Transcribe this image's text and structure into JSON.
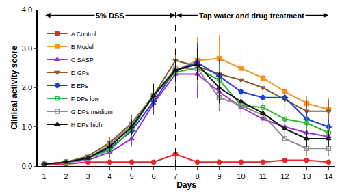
{
  "chart_data": {
    "type": "line",
    "x_label": "Days",
    "y_label": "Clinical activity score",
    "x": [
      1,
      2,
      3,
      4,
      5,
      6,
      7,
      8,
      9,
      10,
      11,
      12,
      13,
      14
    ],
    "xlim": [
      0.7,
      14.3
    ],
    "xticks": [
      1,
      2,
      3,
      4,
      5,
      6,
      7,
      8,
      9,
      10,
      11,
      12,
      13,
      14
    ],
    "ylim": [
      0,
      4
    ],
    "yticks": [
      {
        "value": 0,
        "label": "0.0"
      },
      {
        "value": 1,
        "label": "1.0"
      },
      {
        "value": 2,
        "label": "2.0"
      },
      {
        "value": 3,
        "label": "3.0"
      },
      {
        "value": 4,
        "label": "4.0"
      }
    ],
    "grid": false,
    "legend": "upper left",
    "divider_x": 7,
    "phases": [
      {
        "text": "5% DSS",
        "x_from": 1,
        "x_to": 7,
        "y": 3.85
      },
      {
        "text": "Tap water and drug treatment",
        "x_from": 7,
        "x_to": 14,
        "y": 3.85
      }
    ],
    "series": [
      {
        "name": "A Control",
        "color": "#e8262a",
        "marker": "circle",
        "values": [
          0.05,
          0.05,
          0.1,
          0.1,
          0.1,
          0.1,
          0.3,
          0.1,
          0.1,
          0.1,
          0.1,
          0.15,
          0.15,
          0.1
        ],
        "errors": [
          0.05,
          0.05,
          0.05,
          0.05,
          0.05,
          0.05,
          0.15,
          0.05,
          0.05,
          0.05,
          0.05,
          0.05,
          0.05,
          0.05
        ]
      },
      {
        "name": "B Model",
        "color": "#f7931e",
        "marker": "square",
        "values": [
          0.05,
          0.1,
          0.2,
          0.5,
          1.0,
          1.8,
          2.45,
          2.7,
          2.75,
          2.5,
          2.25,
          1.9,
          1.6,
          1.45
        ],
        "errors": [
          0.05,
          0.05,
          0.1,
          0.15,
          0.2,
          0.3,
          0.3,
          0.6,
          0.6,
          0.5,
          0.4,
          0.3,
          0.2,
          0.3
        ]
      },
      {
        "name": "C SASP",
        "color": "#9b30d9",
        "marker": "triangle-up",
        "values": [
          0.05,
          0.1,
          0.15,
          0.35,
          0.7,
          1.6,
          2.35,
          2.35,
          1.9,
          1.5,
          1.2,
          1.0,
          0.85,
          0.75
        ],
        "errors": [
          0.05,
          0.05,
          0.1,
          0.15,
          0.2,
          0.3,
          0.3,
          0.6,
          0.5,
          0.3,
          0.3,
          0.2,
          0.2,
          0.2
        ]
      },
      {
        "name": "D GPs",
        "color": "#8b5a2b",
        "marker": "triangle-down",
        "values": [
          0.05,
          0.1,
          0.25,
          0.6,
          1.1,
          1.8,
          2.7,
          2.55,
          2.35,
          2.2,
          2.0,
          1.7,
          1.4,
          1.4
        ],
        "errors": [
          0.05,
          0.05,
          0.1,
          0.15,
          0.2,
          0.3,
          0.3,
          0.4,
          0.4,
          0.3,
          0.3,
          0.3,
          0.3,
          0.3
        ]
      },
      {
        "name": "E EPs",
        "color": "#1f3fd6",
        "marker": "diamond",
        "values": [
          0.05,
          0.1,
          0.2,
          0.45,
          0.9,
          1.65,
          2.45,
          2.65,
          2.3,
          1.9,
          1.75,
          1.75,
          1.2,
          1.0
        ],
        "errors": [
          0.05,
          0.05,
          0.1,
          0.15,
          0.2,
          0.3,
          0.3,
          0.5,
          0.4,
          0.3,
          0.3,
          0.3,
          0.2,
          0.2
        ]
      },
      {
        "name": "F DPs low",
        "color": "#2db52d",
        "marker": "circle-open",
        "values": [
          0.05,
          0.1,
          0.2,
          0.4,
          0.95,
          1.8,
          2.4,
          2.5,
          2.2,
          1.55,
          1.5,
          1.2,
          1.1,
          0.85
        ],
        "errors": [
          0.05,
          0.05,
          0.1,
          0.15,
          0.2,
          0.3,
          0.3,
          0.4,
          0.4,
          0.3,
          0.3,
          0.2,
          0.2,
          0.2
        ]
      },
      {
        "name": "G DPs medium",
        "color": "#8c8c8c",
        "marker": "square-open",
        "values": [
          0.05,
          0.1,
          0.2,
          0.55,
          1.05,
          1.8,
          2.5,
          2.5,
          1.75,
          1.55,
          1.3,
          0.7,
          0.45,
          0.45
        ],
        "errors": [
          0.05,
          0.05,
          0.1,
          0.15,
          0.2,
          0.3,
          0.3,
          0.4,
          0.3,
          0.3,
          0.3,
          0.2,
          0.2,
          0.2
        ]
      },
      {
        "name": "H DPs high",
        "color": "#111111",
        "marker": "triangle-up-open",
        "values": [
          0.05,
          0.1,
          0.2,
          0.5,
          1.0,
          1.8,
          2.45,
          2.6,
          2.0,
          1.65,
          1.35,
          0.95,
          0.7,
          0.7
        ],
        "errors": [
          0.05,
          0.05,
          0.1,
          0.15,
          0.2,
          0.3,
          0.3,
          0.4,
          0.4,
          0.3,
          0.3,
          0.2,
          0.2,
          0.2
        ]
      }
    ]
  }
}
